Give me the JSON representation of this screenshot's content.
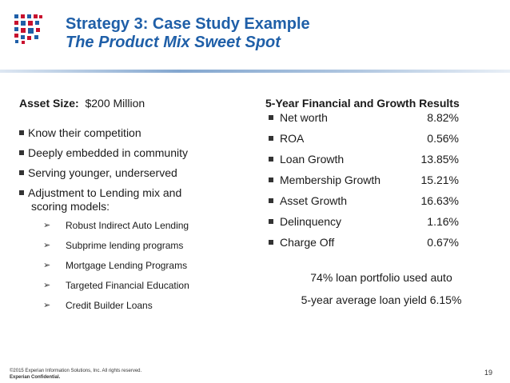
{
  "slide": {
    "title": "Strategy 3: Case Study Example",
    "subtitle": "The Product Mix Sweet Spot"
  },
  "left": {
    "asset_label": "Asset Size:",
    "asset_value": "$200 Million",
    "bullets": [
      "Know their competition",
      "Deeply embedded in community",
      "Serving younger, underserved",
      "Adjustment to Lending mix and"
    ],
    "bullet4_line2": "scoring models:",
    "subbullets": [
      "Robust Indirect Auto Lending",
      "Subprime lending programs",
      "Mortgage Lending Programs",
      "Targeted Financial Education",
      "Credit Builder Loans"
    ]
  },
  "right": {
    "title": "5-Year Financial and Growth Results",
    "metrics": [
      {
        "label": "Net worth",
        "value": "8.82%"
      },
      {
        "label": "ROA",
        "value": "0.56%"
      },
      {
        "label": "Loan Growth",
        "value": "13.85%"
      },
      {
        "label": "Membership Growth",
        "value": "15.21%"
      },
      {
        "label": "Asset Growth",
        "value": "16.63%"
      },
      {
        "label": "Delinquency",
        "value": "1.16%"
      },
      {
        "label": "Charge Off",
        "value": "0.67%"
      }
    ],
    "note1": "74% loan portfolio used auto",
    "note2": "5-year average loan yield 6.15%"
  },
  "footer": {
    "copyright": "©2015 Experian Information Solutions, Inc. All rights reserved.",
    "confidential": "Experian Confidential.",
    "page": "19"
  },
  "colors": {
    "title": "#1f5fa8",
    "rule_blue": "#1f5fa8",
    "logo_red": "#c8102e",
    "logo_blue": "#1f5fa8"
  }
}
